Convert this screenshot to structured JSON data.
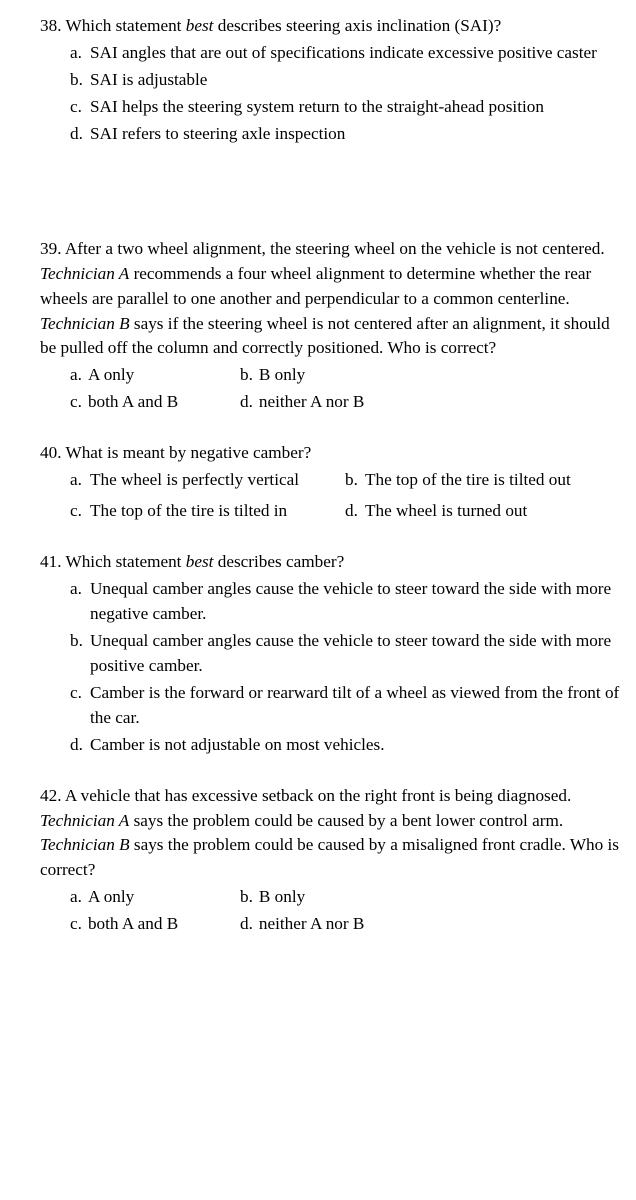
{
  "q38": {
    "num": "38.",
    "stem_pre": "Which statement ",
    "stem_em": "best",
    "stem_post": " describes steering axis inclination (SAI)?",
    "a_lab": "a.",
    "a_txt": "SAI angles that are out of specifications indicate excessive positive caster",
    "b_lab": "b.",
    "b_txt": "SAI is adjustable",
    "c_lab": "c.",
    "c_txt": "SAI helps the steering system return to the straight-ahead position",
    "d_lab": "d.",
    "d_txt": "SAI refers to steering axle inspection"
  },
  "q39": {
    "num": "39.",
    "stem_p1": "After a two wheel alignment, the steering wheel on the vehicle is not centered. ",
    "stem_em1": "Technician A",
    "stem_p2": " recommends a four wheel alignment to determine whether the rear wheels are parallel to one another and perpendicular to a common centerline. ",
    "stem_em2": "Technician B",
    "stem_p3": " says if the steering wheel is not centered after an alignment, it should be pulled off the column and correctly positioned. Who is correct?",
    "a_lab": "a.",
    "a_txt": "A only",
    "b_lab": "b.",
    "b_txt": "B only",
    "c_lab": "c.",
    "c_txt": "both A and B",
    "d_lab": "d.",
    "d_txt": "neither A nor B"
  },
  "q40": {
    "num": "40.",
    "stem": "What is meant by negative camber?",
    "a_lab": "a.",
    "a_txt": "The wheel is perfectly vertical",
    "b_lab": "b.",
    "b_txt": "The top of the tire is tilted out",
    "c_lab": "c.",
    "c_txt": "The top of the tire is tilted in",
    "d_lab": "d.",
    "d_txt": "The wheel is turned out"
  },
  "q41": {
    "num": "41.",
    "stem_pre": "Which statement ",
    "stem_em": "best",
    "stem_post": " describes camber?",
    "a_lab": "a.",
    "a_txt": "Unequal camber angles cause the vehicle to steer toward the side with more negative camber.",
    "b_lab": "b.",
    "b_txt": "Unequal camber angles cause the vehicle to steer toward the side with more positive camber.",
    "c_lab": "c.",
    "c_txt": "Camber is the forward or rearward tilt of a wheel as viewed from the front of the car.",
    "d_lab": "d.",
    "d_txt": "Camber is not adjustable on most vehicles."
  },
  "q42": {
    "num": "42.",
    "stem_p1": "A vehicle that has excessive setback on the right front is being diagnosed. ",
    "stem_em1": "Technician A",
    "stem_p2": " says the problem could be caused by a bent lower control arm. ",
    "stem_em2": "Technician B",
    "stem_p3": " says the problem could be caused by a misaligned front cradle. Who is correct?",
    "a_lab": "a.",
    "a_txt": "A only",
    "b_lab": "b.",
    "b_txt": "B only",
    "c_lab": "c.",
    "c_txt": "both A and B",
    "d_lab": "d.",
    "d_txt": "neither A nor B"
  }
}
